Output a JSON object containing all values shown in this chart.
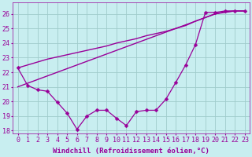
{
  "background_color": "#c8eef0",
  "grid_color": "#a0cccc",
  "line_color": "#990099",
  "xlabel": "Windchill (Refroidissement éolien,°C)",
  "xlim": [
    -0.5,
    23.5
  ],
  "ylim": [
    17.8,
    26.8
  ],
  "yticks": [
    18,
    19,
    20,
    21,
    22,
    23,
    24,
    25,
    26
  ],
  "xticks": [
    0,
    1,
    2,
    3,
    4,
    5,
    6,
    7,
    8,
    9,
    10,
    11,
    12,
    13,
    14,
    15,
    16,
    17,
    18,
    19,
    20,
    21,
    22,
    23
  ],
  "series": [
    {
      "x": [
        0,
        1,
        2,
        3,
        4,
        5,
        6,
        7,
        8,
        9,
        10,
        11,
        12,
        13,
        14,
        15,
        16,
        17,
        18,
        19,
        20,
        21,
        22,
        23
      ],
      "y": [
        21.0,
        21.25,
        21.5,
        21.75,
        22.0,
        22.25,
        22.5,
        22.75,
        23.0,
        23.25,
        23.5,
        23.75,
        24.0,
        24.25,
        24.5,
        24.75,
        25.0,
        25.25,
        25.5,
        25.75,
        26.0,
        26.1,
        26.2,
        26.2
      ],
      "marker": null,
      "linewidth": 1.0
    },
    {
      "x": [
        0,
        1,
        2,
        3,
        4,
        5,
        6,
        7,
        8,
        9,
        10,
        11,
        12,
        13,
        14,
        15,
        16,
        17,
        18,
        19,
        20,
        21,
        22,
        23
      ],
      "y": [
        22.3,
        22.5,
        22.7,
        22.9,
        23.05,
        23.2,
        23.35,
        23.5,
        23.65,
        23.8,
        24.0,
        24.15,
        24.3,
        24.5,
        24.65,
        24.8,
        25.0,
        25.2,
        25.5,
        25.75,
        26.0,
        26.15,
        26.2,
        26.2
      ],
      "marker": null,
      "linewidth": 1.0
    },
    {
      "x": [
        0,
        1,
        2,
        3,
        4,
        5,
        6,
        7,
        8,
        9,
        10,
        11,
        12,
        13,
        14,
        15,
        16,
        17,
        18,
        19,
        20,
        21,
        22,
        23
      ],
      "y": [
        22.3,
        21.1,
        20.8,
        20.7,
        19.95,
        19.2,
        18.1,
        19.0,
        19.4,
        19.4,
        18.85,
        18.35,
        19.3,
        19.4,
        19.4,
        20.15,
        21.3,
        22.5,
        23.9,
        26.1,
        26.1,
        26.2,
        26.2,
        26.2
      ],
      "marker": "D",
      "linewidth": 0.9
    }
  ],
  "xlabel_fontsize": 6.5,
  "tick_fontsize": 6,
  "label_color": "#990099"
}
